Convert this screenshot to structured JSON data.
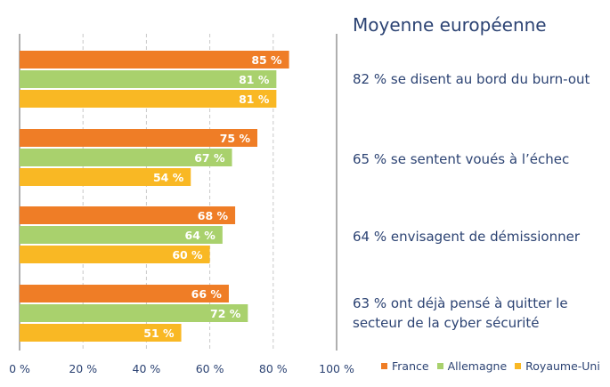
{
  "chart_data": {
    "type": "bar",
    "orientation": "horizontal",
    "xlim": [
      0,
      100
    ],
    "x_ticks": [
      "0 %",
      "20 %",
      "40 %",
      "60 %",
      "80 %",
      "100 %"
    ],
    "series": [
      {
        "name": "France",
        "color": "#ef7d26",
        "values": [
          85,
          75,
          68,
          66
        ],
        "labels": [
          "85 %",
          "75 %",
          "68 %",
          "66 %"
        ]
      },
      {
        "name": "Allemagne",
        "color": "#a9d16d",
        "values": [
          81,
          67,
          64,
          72
        ],
        "labels": [
          "81 %",
          "67 %",
          "64 %",
          "72 %"
        ]
      },
      {
        "name": "Royaume-Uni",
        "color": "#f9b824",
        "values": [
          81,
          54,
          60,
          51
        ],
        "labels": [
          "81 %",
          "54 %",
          "60 %",
          "51 %"
        ]
      }
    ],
    "grid": true,
    "legend_position": "bottom-right"
  },
  "panel": {
    "title": "Moyenne européenne",
    "items": [
      {
        "line1": "82 % se disent au bord du burn-out",
        "line2": ""
      },
      {
        "line1": "65 % se sentent voués à l’échec",
        "line2": ""
      },
      {
        "line1": "64 % envisagent de démissionner",
        "line2": ""
      },
      {
        "line1": "63 % ont déjà pensé à quitter le",
        "line2": "secteur de la cyber sécurité"
      }
    ]
  }
}
